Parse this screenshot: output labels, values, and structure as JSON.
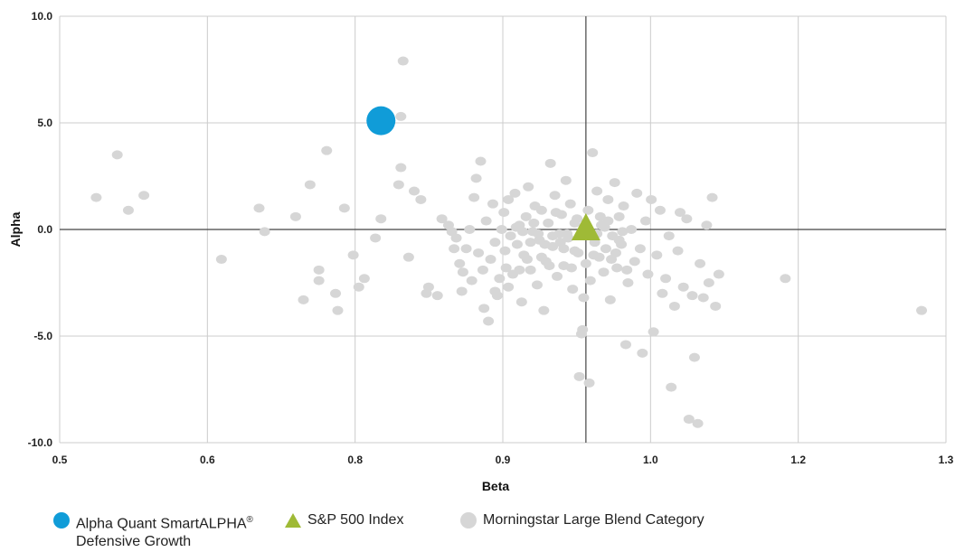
{
  "chart_data": {
    "type": "scatter",
    "xlabel": "Beta",
    "ylabel": "Alpha",
    "xlim": [
      0.5,
      1.3
    ],
    "ylim": [
      -10.0,
      10.0
    ],
    "x_ticks": [
      "0.5",
      "0.6",
      "0.8",
      "0.9",
      "1.0",
      "1.2",
      "1.3"
    ],
    "y_ticks": [
      "10.0",
      "5.0",
      "0.0",
      "-5.0",
      "-10.0"
    ],
    "grid": true,
    "reference_lines": {
      "x": 0.975,
      "y": 0.0
    },
    "legend_position": "bottom-left",
    "colors": {
      "fund": "#109cd8",
      "index": "#9fba36",
      "category": "#d6d6d6",
      "grid": "#cccccc",
      "crosshair": "#444444"
    },
    "series": [
      {
        "name": "Morningstar Large Blend Category",
        "marker": "circle",
        "color": "#d6d6d6",
        "points": [
          [
            0.533,
            1.5
          ],
          [
            0.552,
            3.5
          ],
          [
            0.562,
            0.9
          ],
          [
            0.576,
            1.6
          ],
          [
            0.646,
            -1.4
          ],
          [
            0.68,
            1.0
          ],
          [
            0.685,
            -0.1
          ],
          [
            0.713,
            0.6
          ],
          [
            0.72,
            -3.3
          ],
          [
            0.726,
            2.1
          ],
          [
            0.734,
            -2.4
          ],
          [
            0.734,
            -1.9
          ],
          [
            0.741,
            3.7
          ],
          [
            0.749,
            -3.0
          ],
          [
            0.751,
            -3.8
          ],
          [
            0.757,
            1.0
          ],
          [
            0.765,
            -1.2
          ],
          [
            0.77,
            -2.7
          ],
          [
            0.775,
            -2.3
          ],
          [
            0.785,
            -0.4
          ],
          [
            0.79,
            0.5
          ],
          [
            0.806,
            2.1
          ],
          [
            0.808,
            2.9
          ],
          [
            0.808,
            5.3
          ],
          [
            0.81,
            7.9
          ],
          [
            0.815,
            -1.3
          ],
          [
            0.82,
            1.8
          ],
          [
            0.826,
            1.4
          ],
          [
            0.831,
            -3.0
          ],
          [
            0.833,
            -2.7
          ],
          [
            0.841,
            -3.1
          ],
          [
            0.845,
            0.5
          ],
          [
            0.851,
            0.2
          ],
          [
            0.854,
            -0.1
          ],
          [
            0.856,
            -0.9
          ],
          [
            0.858,
            -0.4
          ],
          [
            0.861,
            -1.6
          ],
          [
            0.863,
            -2.9
          ],
          [
            0.864,
            -2.0
          ],
          [
            0.867,
            -0.9
          ],
          [
            0.87,
            0.0
          ],
          [
            0.872,
            -2.4
          ],
          [
            0.874,
            1.5
          ],
          [
            0.876,
            2.4
          ],
          [
            0.878,
            -1.1
          ],
          [
            0.88,
            3.2
          ],
          [
            0.882,
            -1.9
          ],
          [
            0.883,
            -3.7
          ],
          [
            0.885,
            0.4
          ],
          [
            0.887,
            -4.3
          ],
          [
            0.889,
            -1.4
          ],
          [
            0.891,
            1.2
          ],
          [
            0.893,
            -0.6
          ],
          [
            0.895,
            -3.1
          ],
          [
            0.897,
            -2.3
          ],
          [
            0.899,
            0.0
          ],
          [
            0.901,
            0.8
          ],
          [
            0.903,
            -1.8
          ],
          [
            0.905,
            1.4
          ],
          [
            0.907,
            -0.3
          ],
          [
            0.909,
            -2.1
          ],
          [
            0.911,
            1.7
          ],
          [
            0.913,
            -0.7
          ],
          [
            0.915,
            0.2
          ],
          [
            0.917,
            -3.4
          ],
          [
            0.919,
            -1.2
          ],
          [
            0.921,
            0.6
          ],
          [
            0.923,
            2.0
          ],
          [
            0.925,
            -1.9
          ],
          [
            0.927,
            -0.1
          ],
          [
            0.929,
            1.1
          ],
          [
            0.931,
            -2.6
          ],
          [
            0.933,
            -0.5
          ],
          [
            0.935,
            0.9
          ],
          [
            0.937,
            -3.8
          ],
          [
            0.939,
            -1.5
          ],
          [
            0.941,
            0.3
          ],
          [
            0.943,
            3.1
          ],
          [
            0.945,
            -0.8
          ],
          [
            0.947,
            1.6
          ],
          [
            0.949,
            -2.2
          ],
          [
            0.951,
            -0.2
          ],
          [
            0.953,
            0.7
          ],
          [
            0.955,
            -1.7
          ],
          [
            0.957,
            2.3
          ],
          [
            0.959,
            -0.4
          ],
          [
            0.961,
            1.2
          ],
          [
            0.963,
            -2.8
          ],
          [
            0.965,
            -1.0
          ],
          [
            0.967,
            0.5
          ],
          [
            0.969,
            -6.9
          ],
          [
            0.971,
            -4.9
          ],
          [
            0.972,
            -4.7
          ],
          [
            0.973,
            -3.2
          ],
          [
            0.975,
            -1.6
          ],
          [
            0.977,
            0.9
          ],
          [
            0.978,
            -7.2
          ],
          [
            0.979,
            -2.4
          ],
          [
            0.981,
            3.6
          ],
          [
            0.983,
            -0.6
          ],
          [
            0.985,
            1.8
          ],
          [
            0.987,
            -1.3
          ],
          [
            0.989,
            0.2
          ],
          [
            0.991,
            -2.0
          ],
          [
            0.993,
            -0.9
          ],
          [
            0.995,
            1.4
          ],
          [
            0.997,
            -3.3
          ],
          [
            0.999,
            -0.3
          ],
          [
            1.001,
            2.2
          ],
          [
            1.003,
            -1.8
          ],
          [
            1.005,
            0.6
          ],
          [
            1.007,
            -0.7
          ],
          [
            1.009,
            1.1
          ],
          [
            1.011,
            -5.4
          ],
          [
            1.013,
            -2.5
          ],
          [
            1.016,
            0.0
          ],
          [
            1.019,
            -1.5
          ],
          [
            1.021,
            1.7
          ],
          [
            1.024,
            -0.9
          ],
          [
            1.026,
            -5.8
          ],
          [
            1.029,
            0.4
          ],
          [
            1.031,
            -2.1
          ],
          [
            1.034,
            1.4
          ],
          [
            1.036,
            -4.8
          ],
          [
            1.039,
            -1.2
          ],
          [
            1.042,
            0.9
          ],
          [
            1.044,
            -3.0
          ],
          [
            1.047,
            -2.3
          ],
          [
            1.05,
            -0.3
          ],
          [
            1.052,
            -7.4
          ],
          [
            1.055,
            -3.6
          ],
          [
            1.058,
            -1.0
          ],
          [
            1.06,
            0.8
          ],
          [
            1.063,
            -2.7
          ],
          [
            1.066,
            0.5
          ],
          [
            1.068,
            -8.9
          ],
          [
            1.071,
            -3.1
          ],
          [
            1.073,
            -6.0
          ],
          [
            1.076,
            -9.1
          ],
          [
            1.078,
            -1.6
          ],
          [
            1.081,
            -3.2
          ],
          [
            1.084,
            0.2
          ],
          [
            1.086,
            -2.5
          ],
          [
            1.089,
            1.5
          ],
          [
            1.092,
            -3.6
          ],
          [
            1.095,
            -2.1
          ],
          [
            1.155,
            -2.3
          ],
          [
            1.278,
            -3.8
          ],
          [
            0.893,
            -2.9
          ],
          [
            0.905,
            -2.7
          ],
          [
            0.915,
            -1.9
          ],
          [
            0.925,
            -0.6
          ],
          [
            0.935,
            -1.3
          ],
          [
            0.945,
            -0.3
          ],
          [
            0.955,
            -0.9
          ],
          [
            0.965,
            0.3
          ],
          [
            0.985,
            -0.2
          ],
          [
            0.995,
            0.4
          ],
          [
            1.005,
            -0.5
          ],
          [
            0.902,
            -1.0
          ],
          [
            0.918,
            -0.1
          ],
          [
            0.928,
            0.3
          ],
          [
            0.938,
            -0.7
          ],
          [
            0.948,
            0.8
          ],
          [
            0.958,
            -0.2
          ],
          [
            0.968,
            -1.1
          ],
          [
            0.988,
            0.6
          ],
          [
            0.998,
            -1.4
          ],
          [
            1.008,
            -0.1
          ],
          [
            0.912,
            0.1
          ],
          [
            0.922,
            -1.4
          ],
          [
            0.932,
            -0.2
          ],
          [
            0.942,
            -1.7
          ],
          [
            0.952,
            -0.6
          ],
          [
            0.962,
            -1.8
          ],
          [
            0.982,
            -1.2
          ],
          [
            0.992,
            0.1
          ],
          [
            1.002,
            -1.1
          ],
          [
            1.012,
            -1.9
          ]
        ]
      },
      {
        "name": "S&P 500 Index",
        "marker": "triangle",
        "color": "#9fba36",
        "points": [
          [
            0.975,
            0.0
          ]
        ]
      },
      {
        "name": "Alpha Quant SmartALPHA® Defensive Growth",
        "marker": "circle-large",
        "color": "#109cd8",
        "points": [
          [
            0.79,
            5.1
          ]
        ]
      }
    ]
  },
  "legend": {
    "fund_line1": "Alpha Quant SmartALPHA",
    "fund_reg": "®",
    "fund_line2": "Defensive Growth",
    "index": "S&P 500 Index",
    "category": "Morningstar Large Blend Category"
  }
}
